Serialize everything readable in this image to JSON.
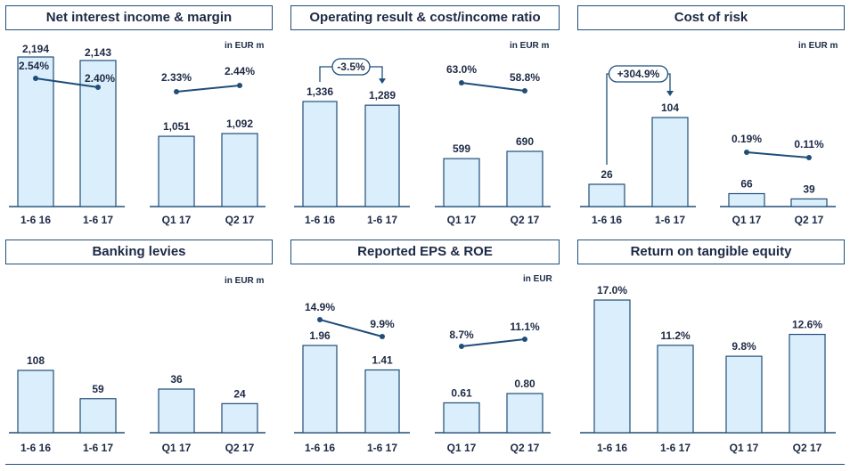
{
  "colors": {
    "bar_fill": "#dbeefb",
    "bar_stroke": "#1f4e79",
    "line": "#1f4e79",
    "text": "#1d2a45"
  },
  "panels": {
    "nii": {
      "title": "Net interest income & margin",
      "unit": "in EUR m"
    },
    "opres": {
      "title": "Operating result & cost/income ratio",
      "unit": "in EUR m"
    },
    "risk": {
      "title": "Cost of risk",
      "unit": "in EUR m"
    },
    "levies": {
      "title": "Banking levies",
      "unit": "in EUR m"
    },
    "eps": {
      "title": "Reported EPS & ROE",
      "unit": "in EUR"
    },
    "rote": {
      "title": "Return on tangible equity",
      "unit": ""
    }
  },
  "chart_data": [
    {
      "id": "nii-half",
      "panel": "nii",
      "type": "bar",
      "categories": [
        "1-6 16",
        "1-6 17"
      ],
      "values": [
        2194,
        2143
      ],
      "value_labels": [
        "2,194",
        "2,143"
      ],
      "line": {
        "values": [
          2.54,
          2.4
        ],
        "labels": [
          "2.54%",
          "2.40%"
        ]
      }
    },
    {
      "id": "nii-quarter",
      "panel": "nii",
      "type": "bar",
      "categories": [
        "Q1 17",
        "Q2 17"
      ],
      "values": [
        1051,
        1092
      ],
      "value_labels": [
        "1,051",
        "1,092"
      ],
      "line": {
        "values": [
          2.33,
          2.44
        ],
        "labels": [
          "2.33%",
          "2.44%"
        ]
      }
    },
    {
      "id": "opres-half",
      "panel": "opres",
      "type": "bar",
      "categories": [
        "1-6 16",
        "1-6 17"
      ],
      "values": [
        1336,
        1289
      ],
      "value_labels": [
        "1,336",
        "1,289"
      ],
      "change": "-3.5%"
    },
    {
      "id": "opres-quarter",
      "panel": "opres",
      "type": "bar",
      "categories": [
        "Q1 17",
        "Q2 17"
      ],
      "values": [
        599,
        690
      ],
      "value_labels": [
        "599",
        "690"
      ],
      "line": {
        "values": [
          63.0,
          58.8
        ],
        "labels": [
          "63.0%",
          "58.8%"
        ]
      }
    },
    {
      "id": "risk-half",
      "panel": "risk",
      "type": "bar",
      "categories": [
        "1-6 16",
        "1-6 17"
      ],
      "values": [
        26,
        104
      ],
      "value_labels": [
        "26",
        "104"
      ],
      "change": "+304.9%"
    },
    {
      "id": "risk-quarter",
      "panel": "risk",
      "type": "bar",
      "categories": [
        "Q1 17",
        "Q2 17"
      ],
      "values": [
        66,
        39
      ],
      "value_labels": [
        "66",
        "39"
      ],
      "line": {
        "values": [
          0.19,
          0.11
        ],
        "labels": [
          "0.19%",
          "0.11%"
        ]
      }
    },
    {
      "id": "levies-half",
      "panel": "levies",
      "type": "bar",
      "categories": [
        "1-6 16",
        "1-6 17"
      ],
      "values": [
        108,
        59
      ],
      "value_labels": [
        "108",
        "59"
      ]
    },
    {
      "id": "levies-quarter",
      "panel": "levies",
      "type": "bar",
      "categories": [
        "Q1 17",
        "Q2 17"
      ],
      "values": [
        36,
        24
      ],
      "value_labels": [
        "36",
        "24"
      ]
    },
    {
      "id": "eps-half",
      "panel": "eps",
      "type": "bar",
      "categories": [
        "1-6 16",
        "1-6 17"
      ],
      "values": [
        1.96,
        1.41
      ],
      "value_labels": [
        "1.96",
        "1.41"
      ],
      "line": {
        "values": [
          14.9,
          9.9
        ],
        "labels": [
          "14.9%",
          "9.9%"
        ]
      }
    },
    {
      "id": "eps-quarter",
      "panel": "eps",
      "type": "bar",
      "categories": [
        "Q1 17",
        "Q2 17"
      ],
      "values": [
        0.61,
        0.8
      ],
      "value_labels": [
        "0.61",
        "0.80"
      ],
      "line": {
        "values": [
          8.7,
          11.1
        ],
        "labels": [
          "8.7%",
          "11.1%"
        ]
      }
    },
    {
      "id": "rote",
      "panel": "rote",
      "type": "bar",
      "categories": [
        "1-6 16",
        "1-6 17",
        "Q1 17",
        "Q2 17"
      ],
      "values": [
        17.0,
        11.2,
        9.8,
        12.6
      ],
      "value_labels": [
        "17.0%",
        "11.2%",
        "9.8%",
        "12.6%"
      ]
    }
  ]
}
